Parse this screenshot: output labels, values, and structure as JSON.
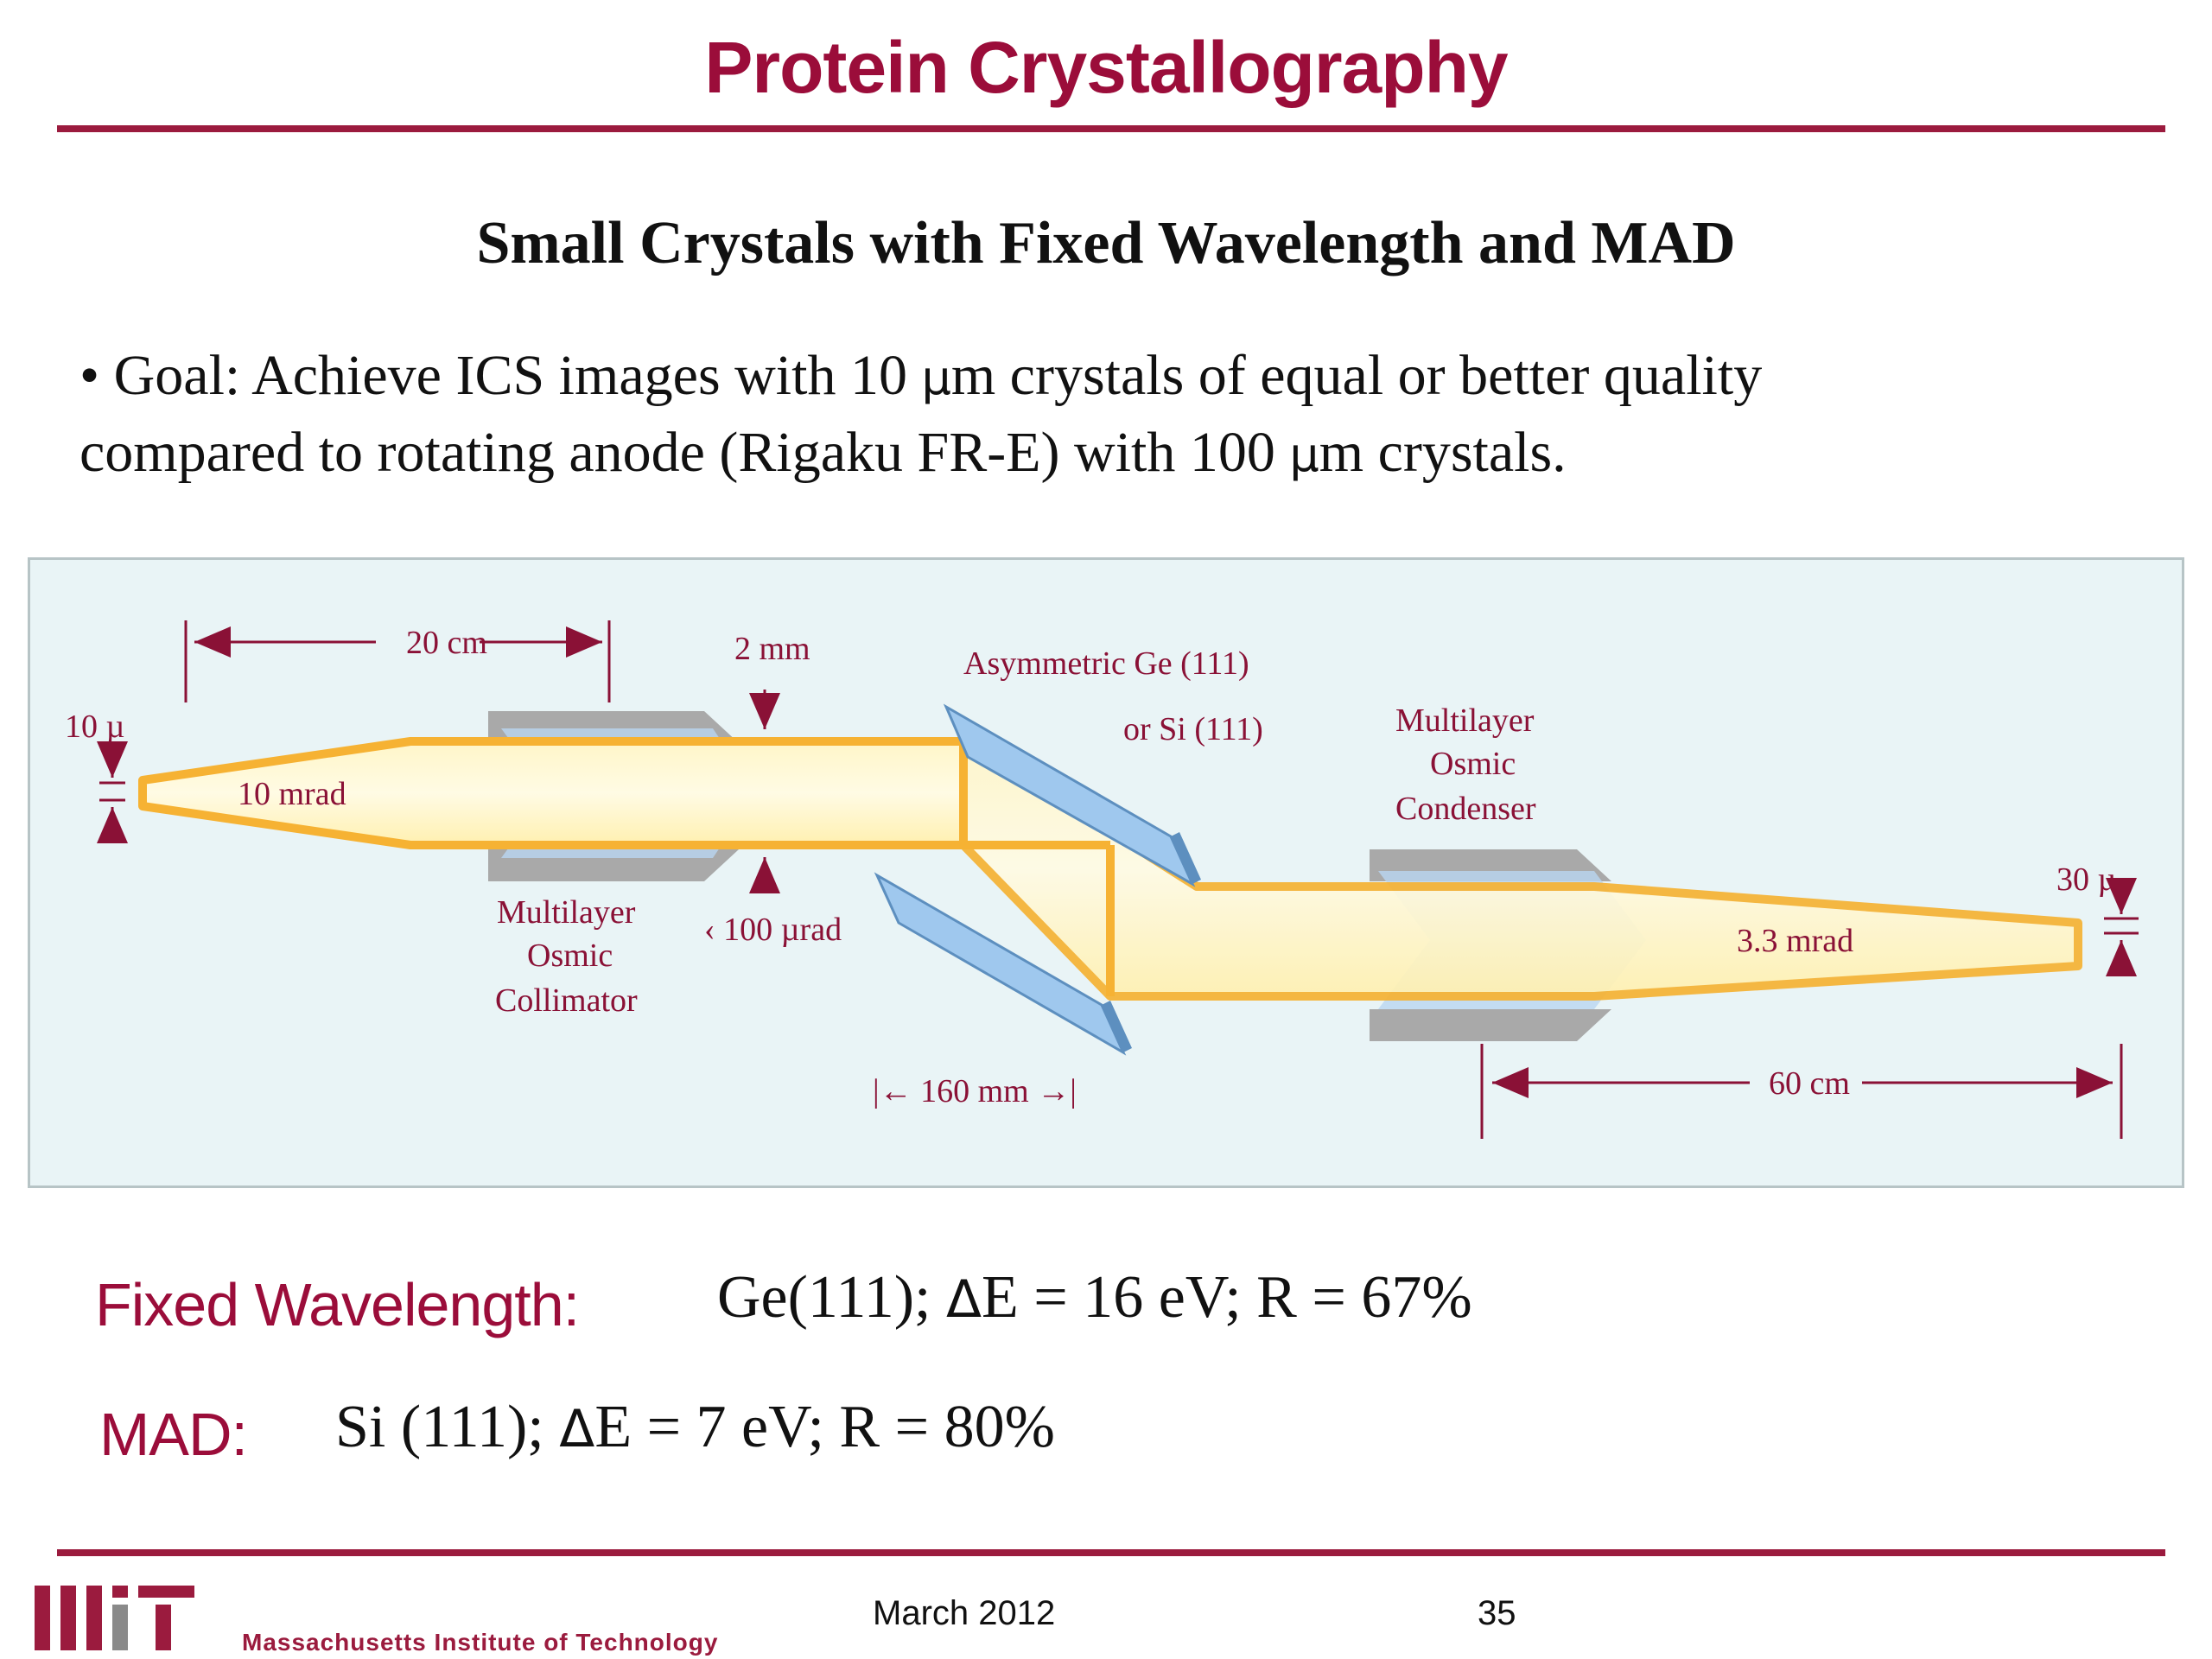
{
  "slide": {
    "title": "Protein Crystallography",
    "subtitle": "Small Crystals with Fixed Wavelength and MAD",
    "goal_line_1": "•  Goal: Achieve ICS images with 10 ",
    "goal_mu": "µ",
    "goal_line_1b": "m crystals of equal or better quality",
    "goal_line_2": "compared to rotating anode (Rigaku FR-E) with 100 ",
    "goal_line_2b": "m crystals."
  },
  "diagram": {
    "label_20cm": "20 cm",
    "label_2mm": "2 mm",
    "label_asym": "Asymmetric Ge (111)",
    "label_or_si": "or Si (111)",
    "label_condenser_1": "Multilayer",
    "label_condenser_2": "Osmic",
    "label_condenser_3": "Condenser",
    "label_10mu": "10 µ",
    "label_10mrad": "10 mrad",
    "label_collimator_1": "Multilayer",
    "label_collimator_2": "Osmic",
    "label_collimator_3": "Collimator",
    "label_100urad": "‹ 100 µrad",
    "label_160mm": "|← 160  mm →|",
    "label_30mu": "30 µ",
    "label_33mrad": "3.3 mrad",
    "label_60cm": "60 cm"
  },
  "bottom": {
    "fixed_label": "Fixed Wavelength:",
    "fixed_pre": "Ge(111); ",
    "fixed_delta": "Δ",
    "fixed_post": "E = 16 eV; R = 67%",
    "mad_label": "MAD:",
    "mad_pre": "Si (111); ",
    "mad_delta": "Δ",
    "mad_post": "E = 7 eV; R = 80%"
  },
  "footer": {
    "date": "March 2012",
    "page": "35",
    "institution": "Massachusetts Institute of Technology"
  },
  "colors": {
    "accent": "#9b0d3a",
    "diagram_bg": "#e9f4f6",
    "beam": "#f6b233",
    "optic": "#9fc8ee"
  }
}
